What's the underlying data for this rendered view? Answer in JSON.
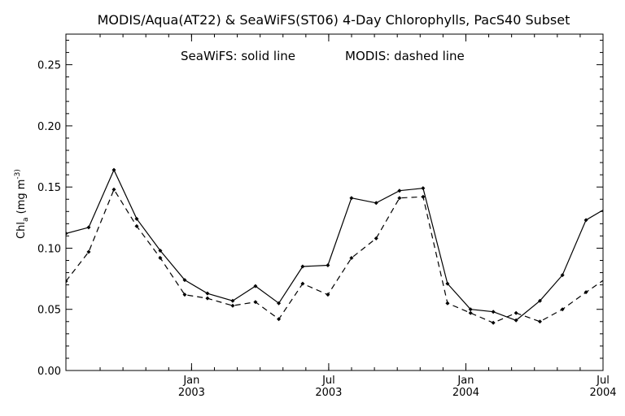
{
  "chart_data": {
    "type": "line",
    "title": "MODIS/Aqua(AT22) & SeaWiFS(ST06) 4-Day Chlorophylls, PacS40 Subset",
    "annotation_seawifs": "SeaWiFS: solid line",
    "annotation_modis": "MODIS: dashed line",
    "ylabel": "Chl_a (mg m^-3)",
    "ylim": [
      0.0,
      0.275
    ],
    "yticks": [
      "0.00",
      "0.05",
      "0.10",
      "0.15",
      "0.20",
      "0.25"
    ],
    "ytick_values": [
      0.0,
      0.05,
      0.1,
      0.15,
      0.2,
      0.25
    ],
    "xlim": [
      2002.542,
      2004.5
    ],
    "xticks": [
      {
        "month": "Jan",
        "year": "2003",
        "x": 2003.0
      },
      {
        "month": "Jul",
        "year": "2003",
        "x": 2003.5
      },
      {
        "month": "Jan",
        "year": "2004",
        "x": 2004.0
      },
      {
        "month": "Jul",
        "year": "2004",
        "x": 2004.5
      }
    ],
    "x": [
      2002.542,
      2002.625,
      2002.717,
      2002.8,
      2002.886,
      2002.975,
      2003.058,
      2003.15,
      2003.233,
      2003.318,
      2003.405,
      2003.497,
      2003.583,
      2003.673,
      2003.758,
      2003.844,
      2003.933,
      2004.017,
      2004.1,
      2004.183,
      2004.27,
      2004.352,
      2004.438,
      2004.522
    ],
    "series": [
      {
        "name": "SeaWiFS",
        "style": "solid",
        "values": [
          0.112,
          0.117,
          0.164,
          0.124,
          0.098,
          0.074,
          0.063,
          0.057,
          0.069,
          0.055,
          0.085,
          0.086,
          0.141,
          0.137,
          0.147,
          0.149,
          0.071,
          0.05,
          0.048,
          0.041,
          0.057,
          0.078,
          0.123,
          0.134
        ]
      },
      {
        "name": "MODIS",
        "style": "dashed",
        "values": [
          0.073,
          0.097,
          0.148,
          0.118,
          0.092,
          0.062,
          0.059,
          0.053,
          0.056,
          0.042,
          0.071,
          0.062,
          0.092,
          0.108,
          0.141,
          0.142,
          0.055,
          0.047,
          0.039,
          0.047,
          0.04,
          0.05,
          0.064,
          0.077
        ]
      }
    ],
    "grid": false
  }
}
